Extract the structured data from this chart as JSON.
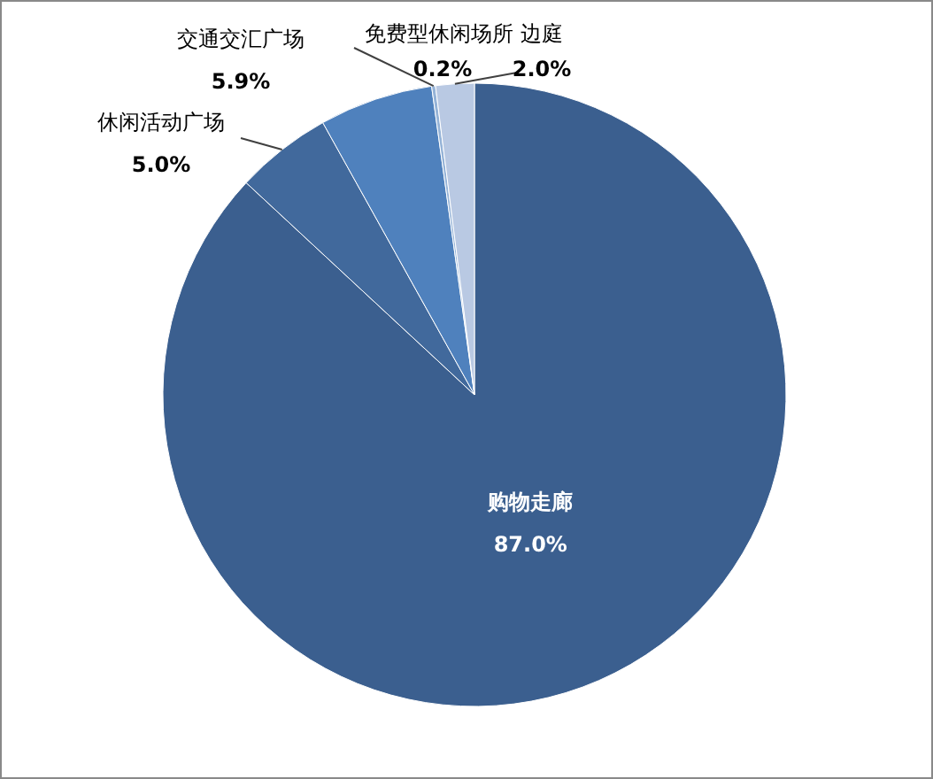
{
  "chart_data": {
    "type": "pie",
    "categories": [
      "购物走廊",
      "休闲活动广场",
      "交通交汇广场",
      "免费型休闲场所",
      "边庭"
    ],
    "values": [
      87.0,
      5.0,
      5.9,
      0.2,
      2.0
    ],
    "value_labels": [
      "87.0%",
      "5.0%",
      "5.9%",
      "0.2%",
      "2.0%"
    ],
    "colors": [
      "#3b5f8f",
      "#41699c",
      "#4f81bd",
      "#95b3d7",
      "#b9c9e3"
    ],
    "legend": false
  }
}
